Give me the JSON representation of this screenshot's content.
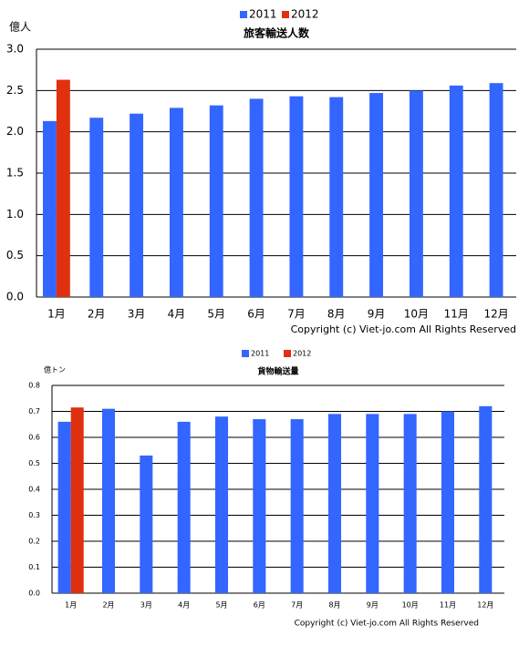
{
  "chart_data": [
    {
      "type": "bar",
      "title": "旅客輸送人数",
      "y_label": "億人",
      "categories": [
        "1月",
        "2月",
        "3月",
        "4月",
        "5月",
        "6月",
        "7月",
        "8月",
        "9月",
        "10月",
        "11月",
        "12月"
      ],
      "series": [
        {
          "name": "2011",
          "color": "#3366ff",
          "values": [
            2.13,
            2.17,
            2.22,
            2.29,
            2.32,
            2.4,
            2.43,
            2.42,
            2.47,
            2.5,
            2.56,
            2.59
          ]
        },
        {
          "name": "2012",
          "color": "#e03010",
          "values": [
            2.63,
            null,
            null,
            null,
            null,
            null,
            null,
            null,
            null,
            null,
            null,
            null
          ]
        }
      ],
      "ylim": [
        0,
        3.0
      ],
      "yticks": [
        {
          "value": 0,
          "label": "0.0"
        },
        0.5,
        {
          "value": 1,
          "label": "1.0"
        },
        1.5,
        {
          "value": 2,
          "label": "2.0"
        },
        2.5,
        {
          "value": 3,
          "label": "3.0"
        }
      ],
      "grid": true,
      "legend": "top",
      "annotation": "Copyright (c) Viet-jo.com All Rights Reserved"
    },
    {
      "type": "bar",
      "title": "貨物輸送量",
      "y_label": "億トン",
      "categories": [
        "1月",
        "2月",
        "3月",
        "4月",
        "5月",
        "6月",
        "7月",
        "8月",
        "9月",
        "10月",
        "11月",
        "12月"
      ],
      "series": [
        {
          "name": "2011",
          "color": "#3366ff",
          "values": [
            0.66,
            0.71,
            0.53,
            0.66,
            0.68,
            0.67,
            0.67,
            0.69,
            0.69,
            0.69,
            0.7,
            0.72
          ]
        },
        {
          "name": "2012",
          "color": "#e03010",
          "values": [
            0.715,
            null,
            null,
            null,
            null,
            null,
            null,
            null,
            null,
            null,
            null,
            null
          ]
        }
      ],
      "ylim": [
        0,
        0.8
      ],
      "yticks": [
        {
          "value": 0,
          "label": "0.0"
        },
        0.1,
        0.2,
        0.3,
        0.4,
        0.5,
        0.6,
        0.7,
        0.8
      ],
      "grid": true,
      "legend": "top",
      "annotation": "Copyright (c) Viet-jo.com All Rights Reserved"
    }
  ]
}
